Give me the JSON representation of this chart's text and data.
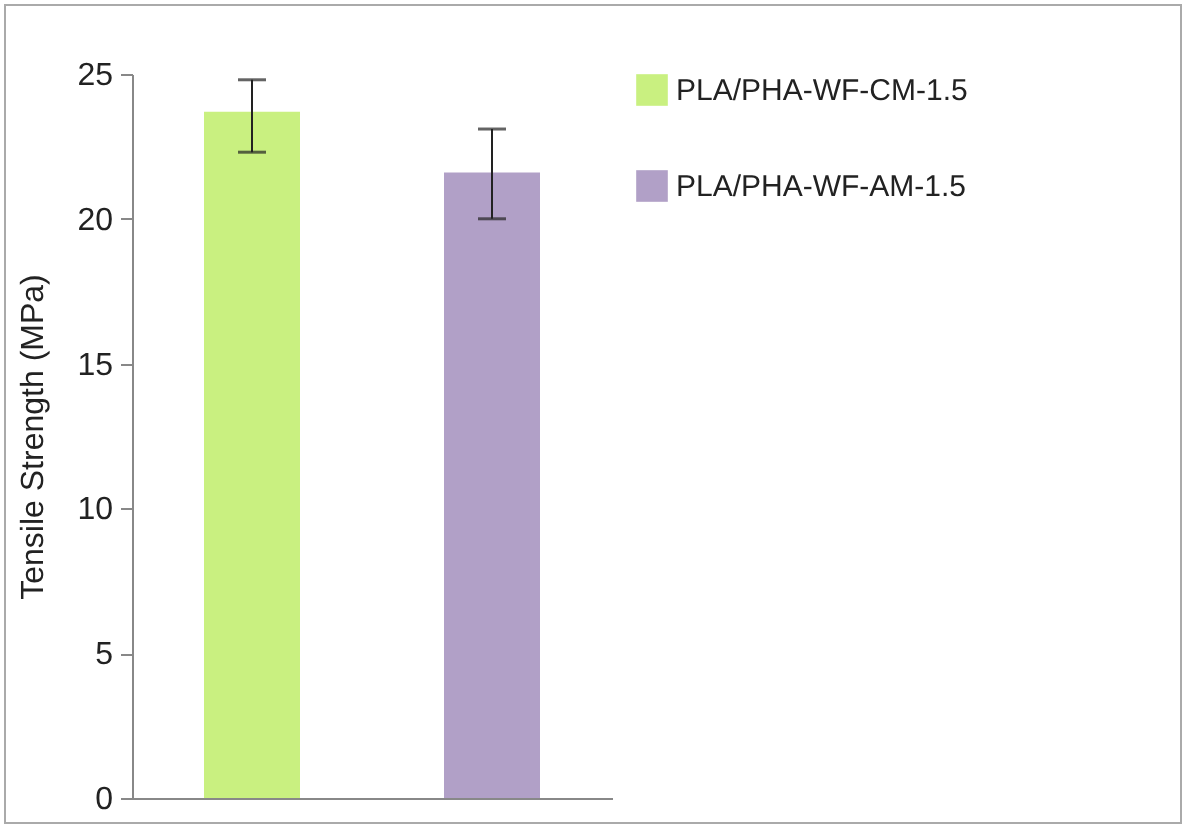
{
  "chart_data": {
    "type": "bar",
    "ylabel": "Tensile Strength (MPa)",
    "categories": [
      null,
      null
    ],
    "series": [
      {
        "name": "PLA/PHA-WF-CM-1.5",
        "color": "#c9f080",
        "values": [
          23.7,
          null
        ],
        "errors": [
          [
            22.3,
            24.8
          ],
          null
        ]
      },
      {
        "name": "PLA/PHA-WF-AM-1.5",
        "color": "#b1a0c7",
        "values": [
          null,
          21.6
        ],
        "errors": [
          null,
          [
            20.0,
            23.1
          ]
        ]
      }
    ],
    "ylim": [
      0,
      25
    ],
    "yticks": [
      0,
      5,
      10,
      15,
      20,
      25
    ],
    "grid": false,
    "legend": "top right"
  }
}
